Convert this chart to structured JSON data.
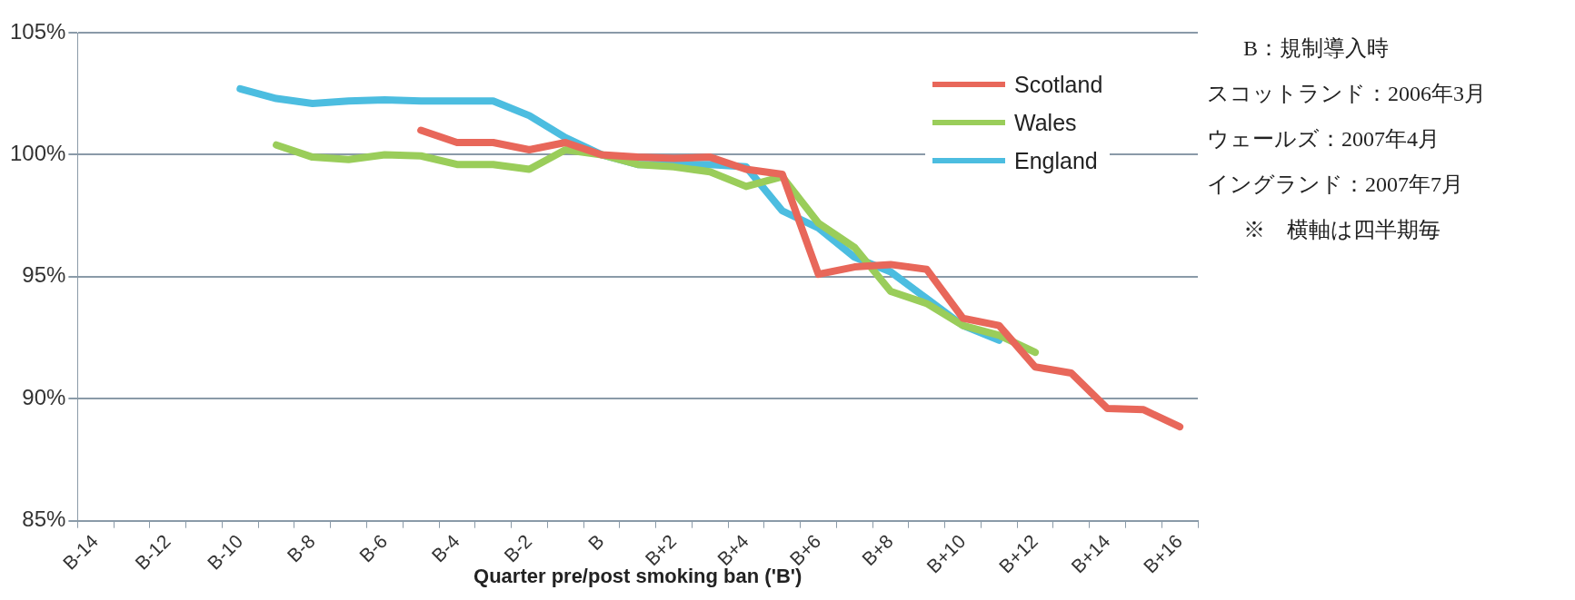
{
  "chart_data": {
    "type": "line",
    "xlabel": "Quarter pre/post smoking ban ('B')",
    "categories": [
      "B-14",
      null,
      "B-12",
      null,
      "B-10",
      null,
      "B-8",
      null,
      "B-6",
      null,
      "B-4",
      null,
      "B-2",
      null,
      "B",
      null,
      "B+2",
      null,
      "B+4",
      null,
      "B+6",
      null,
      "B+8",
      null,
      "B+10",
      null,
      "B+12",
      null,
      "B+14",
      null,
      "B+16"
    ],
    "series": [
      {
        "name": "Scotland",
        "color": "#e8675a",
        "values": [
          null,
          null,
          null,
          null,
          null,
          null,
          null,
          null,
          null,
          101.0,
          100.5,
          100.5,
          100.2,
          100.5,
          100.0,
          99.9,
          99.85,
          99.9,
          99.4,
          99.2,
          95.1,
          95.4,
          95.5,
          95.3,
          93.3,
          93.0,
          91.3,
          91.05,
          89.6,
          89.55,
          88.85
        ]
      },
      {
        "name": "Wales",
        "color": "#9acd5a",
        "values": [
          null,
          null,
          null,
          null,
          null,
          100.4,
          99.9,
          99.8,
          100.0,
          99.95,
          99.6,
          99.6,
          99.4,
          100.2,
          100.0,
          99.6,
          99.5,
          99.3,
          98.7,
          99.1,
          97.2,
          96.2,
          94.4,
          93.9,
          93.0,
          92.6,
          91.9,
          null,
          null,
          null,
          null
        ]
      },
      {
        "name": "England",
        "color": "#4cbde0",
        "values": [
          null,
          null,
          null,
          null,
          102.7,
          102.3,
          102.1,
          102.2,
          102.25,
          102.2,
          102.2,
          102.2,
          101.6,
          100.7,
          100.0,
          99.6,
          99.6,
          99.6,
          99.5,
          97.7,
          97.0,
          95.8,
          95.2,
          94.1,
          93.0,
          92.4,
          null,
          null,
          null,
          null,
          null
        ]
      }
    ],
    "ylim": [
      85,
      105
    ],
    "yticks": [
      {
        "value": 85,
        "label": "85%"
      },
      {
        "value": 90,
        "label": "90%"
      },
      {
        "value": 95,
        "label": "95%"
      },
      {
        "value": 100,
        "label": "100%"
      },
      {
        "value": 105,
        "label": "105%"
      }
    ],
    "grid": "y",
    "legend": "top right",
    "marker": "none",
    "line_style": "solid",
    "annotations": [
      "B：規制導入時",
      "スコットランド：2006年3月",
      "ウェールズ：2007年4月",
      "イングランド：2007年7月",
      "※　横軸は四半期毎"
    ]
  }
}
